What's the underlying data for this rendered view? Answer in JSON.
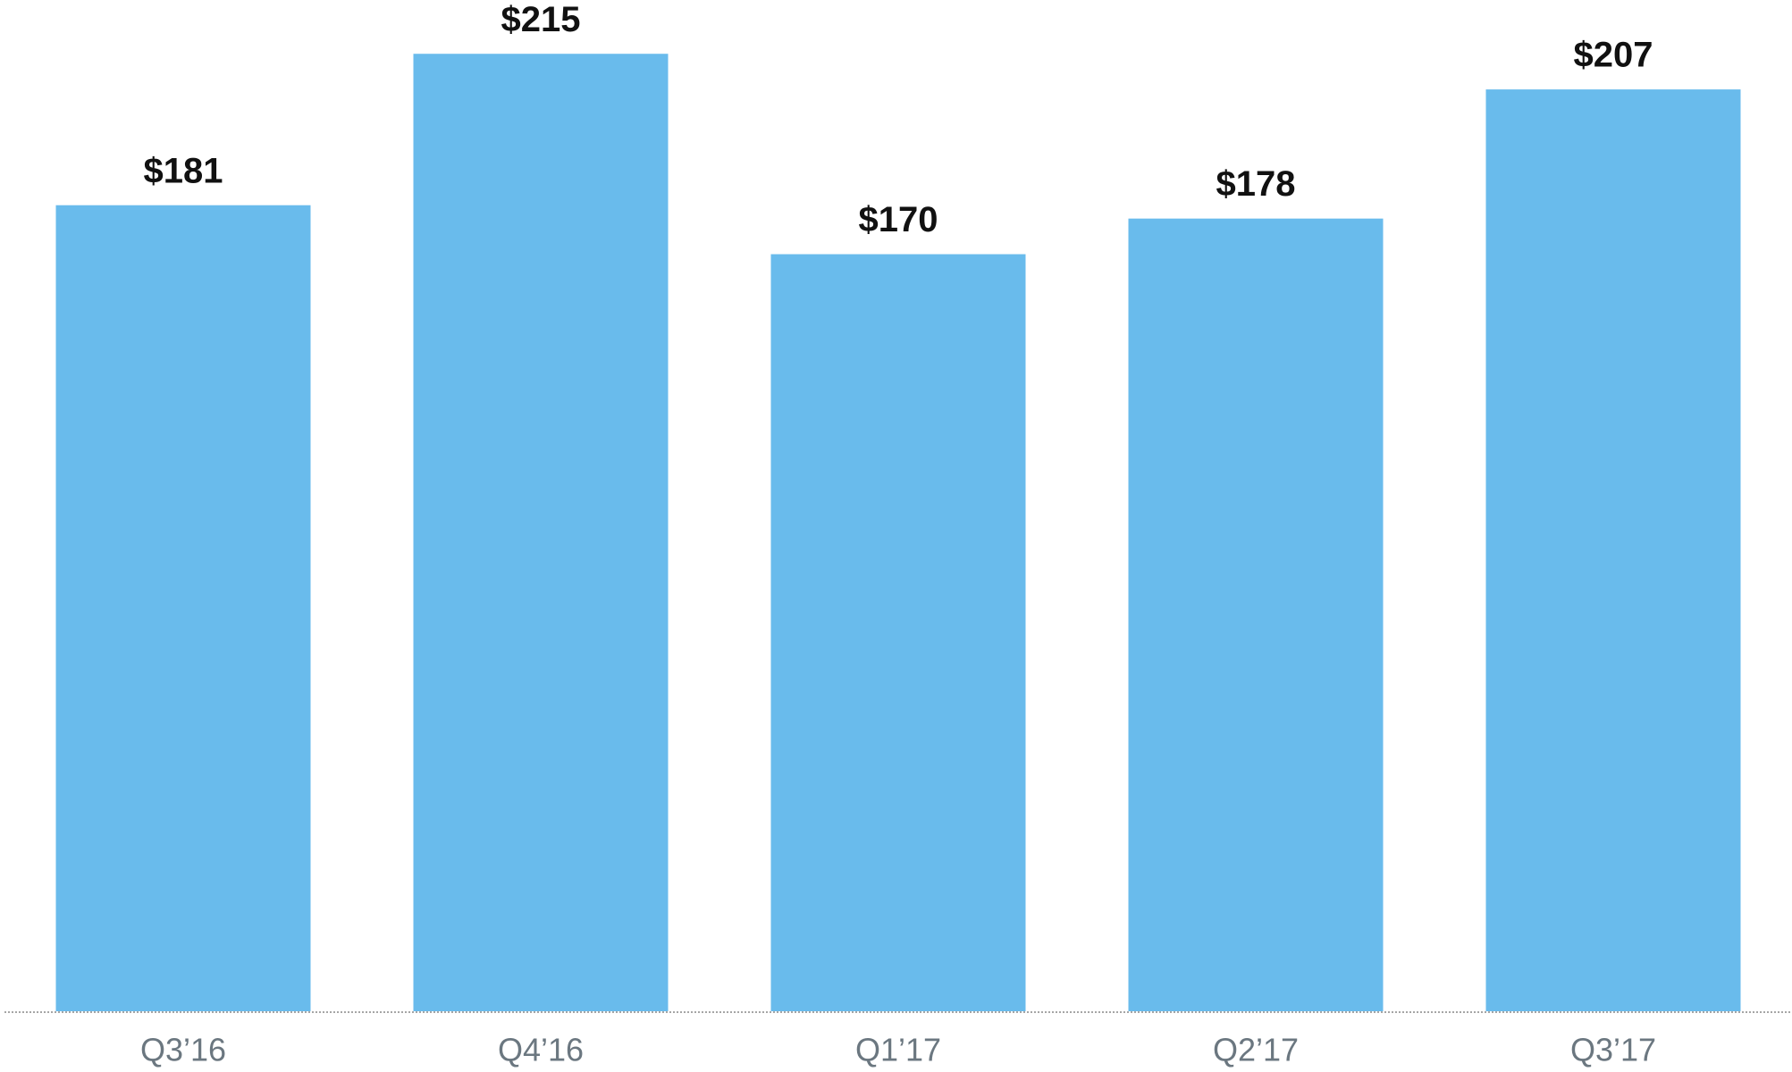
{
  "chart_data": {
    "type": "bar",
    "categories": [
      "Q3’16",
      "Q4’16",
      "Q1’17",
      "Q2’17",
      "Q3’17"
    ],
    "values": [
      181,
      215,
      170,
      178,
      207
    ],
    "value_labels": [
      "$181",
      "$215",
      "$170",
      "$178",
      "$207"
    ],
    "color": "#69bbec"
  }
}
